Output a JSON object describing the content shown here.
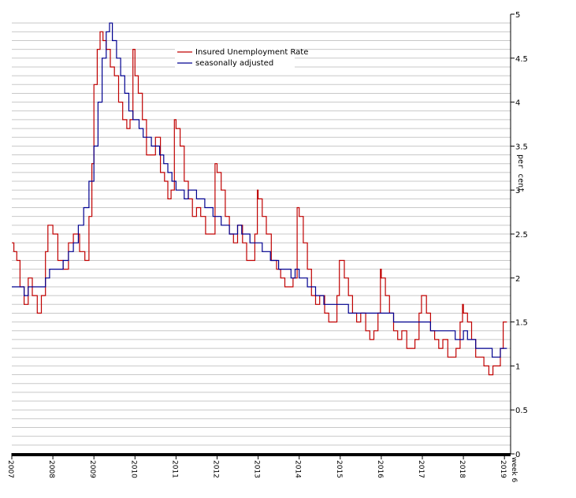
{
  "chart_data": {
    "type": "line",
    "xlabel": "",
    "ylabel": "per cent",
    "ylim": [
      0,
      5
    ],
    "y_ticks": [
      "0",
      "0.5",
      "1",
      "1.5",
      "2",
      "2.5",
      "3",
      "3.5",
      "4",
      "4.5",
      "5"
    ],
    "x_ticks": [
      "2007",
      "2008",
      "2009",
      "2010",
      "2011",
      "2012",
      "2013",
      "2014",
      "2015",
      "2016",
      "2017",
      "2018",
      "2019"
    ],
    "x_end_label": "week 6",
    "xlim": [
      2007.0,
      2019.15
    ],
    "grid": true,
    "legend_position": "top-center",
    "series": [
      {
        "name": "Insured Unemployment Rate",
        "color": "#c00000",
        "points": [
          [
            2007.0,
            2.4
          ],
          [
            2007.05,
            2.3
          ],
          [
            2007.12,
            2.2
          ],
          [
            2007.2,
            1.9
          ],
          [
            2007.3,
            1.7
          ],
          [
            2007.4,
            2.0
          ],
          [
            2007.5,
            1.8
          ],
          [
            2007.62,
            1.6
          ],
          [
            2007.72,
            1.8
          ],
          [
            2007.82,
            2.3
          ],
          [
            2007.88,
            2.6
          ],
          [
            2008.0,
            2.5
          ],
          [
            2008.12,
            2.2
          ],
          [
            2008.25,
            2.1
          ],
          [
            2008.38,
            2.4
          ],
          [
            2008.5,
            2.5
          ],
          [
            2008.65,
            2.3
          ],
          [
            2008.78,
            2.2
          ],
          [
            2008.88,
            2.7
          ],
          [
            2008.95,
            3.3
          ],
          [
            2009.0,
            4.2
          ],
          [
            2009.08,
            4.6
          ],
          [
            2009.15,
            4.8
          ],
          [
            2009.22,
            4.7
          ],
          [
            2009.3,
            4.6
          ],
          [
            2009.4,
            4.4
          ],
          [
            2009.5,
            4.3
          ],
          [
            2009.6,
            4.0
          ],
          [
            2009.7,
            3.8
          ],
          [
            2009.8,
            3.7
          ],
          [
            2009.88,
            3.8
          ],
          [
            2009.95,
            4.6
          ],
          [
            2010.0,
            4.3
          ],
          [
            2010.08,
            4.1
          ],
          [
            2010.18,
            3.8
          ],
          [
            2010.28,
            3.4
          ],
          [
            2010.4,
            3.4
          ],
          [
            2010.5,
            3.6
          ],
          [
            2010.62,
            3.2
          ],
          [
            2010.72,
            3.1
          ],
          [
            2010.8,
            2.9
          ],
          [
            2010.88,
            3.0
          ],
          [
            2010.96,
            3.8
          ],
          [
            2011.0,
            3.7
          ],
          [
            2011.1,
            3.5
          ],
          [
            2011.2,
            3.1
          ],
          [
            2011.3,
            2.9
          ],
          [
            2011.4,
            2.7
          ],
          [
            2011.5,
            2.8
          ],
          [
            2011.6,
            2.7
          ],
          [
            2011.72,
            2.5
          ],
          [
            2011.84,
            2.5
          ],
          [
            2011.95,
            3.3
          ],
          [
            2012.0,
            3.2
          ],
          [
            2012.1,
            3.0
          ],
          [
            2012.2,
            2.7
          ],
          [
            2012.3,
            2.5
          ],
          [
            2012.4,
            2.4
          ],
          [
            2012.5,
            2.6
          ],
          [
            2012.62,
            2.4
          ],
          [
            2012.72,
            2.2
          ],
          [
            2012.82,
            2.2
          ],
          [
            2012.92,
            2.5
          ],
          [
            2012.98,
            3.0
          ],
          [
            2013.0,
            2.9
          ],
          [
            2013.1,
            2.7
          ],
          [
            2013.2,
            2.5
          ],
          [
            2013.32,
            2.2
          ],
          [
            2013.45,
            2.1
          ],
          [
            2013.55,
            2.0
          ],
          [
            2013.65,
            1.9
          ],
          [
            2013.75,
            1.9
          ],
          [
            2013.85,
            2.0
          ],
          [
            2013.95,
            2.8
          ],
          [
            2014.0,
            2.7
          ],
          [
            2014.1,
            2.4
          ],
          [
            2014.2,
            2.1
          ],
          [
            2014.3,
            1.8
          ],
          [
            2014.4,
            1.7
          ],
          [
            2014.5,
            1.8
          ],
          [
            2014.62,
            1.6
          ],
          [
            2014.72,
            1.5
          ],
          [
            2014.82,
            1.5
          ],
          [
            2014.92,
            1.8
          ],
          [
            2014.98,
            2.2
          ],
          [
            2015.0,
            2.2
          ],
          [
            2015.1,
            2.0
          ],
          [
            2015.2,
            1.8
          ],
          [
            2015.3,
            1.6
          ],
          [
            2015.4,
            1.5
          ],
          [
            2015.5,
            1.6
          ],
          [
            2015.62,
            1.4
          ],
          [
            2015.72,
            1.3
          ],
          [
            2015.82,
            1.4
          ],
          [
            2015.92,
            1.6
          ],
          [
            2015.98,
            2.1
          ],
          [
            2016.0,
            2.0
          ],
          [
            2016.1,
            1.8
          ],
          [
            2016.2,
            1.6
          ],
          [
            2016.3,
            1.4
          ],
          [
            2016.4,
            1.3
          ],
          [
            2016.5,
            1.4
          ],
          [
            2016.62,
            1.2
          ],
          [
            2016.72,
            1.2
          ],
          [
            2016.82,
            1.3
          ],
          [
            2016.92,
            1.6
          ],
          [
            2016.98,
            1.8
          ],
          [
            2017.0,
            1.8
          ],
          [
            2017.1,
            1.6
          ],
          [
            2017.2,
            1.4
          ],
          [
            2017.3,
            1.3
          ],
          [
            2017.4,
            1.2
          ],
          [
            2017.5,
            1.3
          ],
          [
            2017.62,
            1.1
          ],
          [
            2017.72,
            1.1
          ],
          [
            2017.82,
            1.2
          ],
          [
            2017.92,
            1.5
          ],
          [
            2017.98,
            1.7
          ],
          [
            2018.0,
            1.6
          ],
          [
            2018.1,
            1.5
          ],
          [
            2018.2,
            1.3
          ],
          [
            2018.3,
            1.1
          ],
          [
            2018.4,
            1.1
          ],
          [
            2018.5,
            1.0
          ],
          [
            2018.62,
            0.9
          ],
          [
            2018.72,
            1.0
          ],
          [
            2018.82,
            1.0
          ],
          [
            2018.9,
            1.2
          ],
          [
            2018.97,
            1.5
          ],
          [
            2019.0,
            1.5
          ],
          [
            2019.06,
            1.5
          ]
        ]
      },
      {
        "name": "seasonally adjusted",
        "color": "#000090",
        "points": [
          [
            2007.0,
            1.9
          ],
          [
            2007.1,
            1.9
          ],
          [
            2007.2,
            1.9
          ],
          [
            2007.3,
            1.8
          ],
          [
            2007.4,
            1.9
          ],
          [
            2007.5,
            1.9
          ],
          [
            2007.62,
            1.9
          ],
          [
            2007.72,
            1.9
          ],
          [
            2007.82,
            2.0
          ],
          [
            2007.92,
            2.1
          ],
          [
            2008.0,
            2.1
          ],
          [
            2008.12,
            2.1
          ],
          [
            2008.25,
            2.2
          ],
          [
            2008.38,
            2.3
          ],
          [
            2008.5,
            2.4
          ],
          [
            2008.62,
            2.6
          ],
          [
            2008.75,
            2.8
          ],
          [
            2008.88,
            3.1
          ],
          [
            2009.0,
            3.5
          ],
          [
            2009.1,
            4.0
          ],
          [
            2009.2,
            4.5
          ],
          [
            2009.3,
            4.8
          ],
          [
            2009.38,
            4.9
          ],
          [
            2009.45,
            4.7
          ],
          [
            2009.55,
            4.5
          ],
          [
            2009.65,
            4.3
          ],
          [
            2009.75,
            4.1
          ],
          [
            2009.85,
            3.9
          ],
          [
            2009.95,
            3.8
          ],
          [
            2010.0,
            3.8
          ],
          [
            2010.1,
            3.7
          ],
          [
            2010.2,
            3.6
          ],
          [
            2010.3,
            3.6
          ],
          [
            2010.4,
            3.5
          ],
          [
            2010.5,
            3.5
          ],
          [
            2010.6,
            3.4
          ],
          [
            2010.7,
            3.3
          ],
          [
            2010.8,
            3.2
          ],
          [
            2010.9,
            3.1
          ],
          [
            2011.0,
            3.0
          ],
          [
            2011.1,
            3.0
          ],
          [
            2011.2,
            2.9
          ],
          [
            2011.3,
            3.0
          ],
          [
            2011.4,
            3.0
          ],
          [
            2011.5,
            2.9
          ],
          [
            2011.6,
            2.9
          ],
          [
            2011.7,
            2.8
          ],
          [
            2011.8,
            2.8
          ],
          [
            2011.9,
            2.7
          ],
          [
            2012.0,
            2.7
          ],
          [
            2012.1,
            2.6
          ],
          [
            2012.2,
            2.6
          ],
          [
            2012.3,
            2.5
          ],
          [
            2012.4,
            2.5
          ],
          [
            2012.5,
            2.6
          ],
          [
            2012.6,
            2.5
          ],
          [
            2012.7,
            2.5
          ],
          [
            2012.8,
            2.4
          ],
          [
            2012.9,
            2.4
          ],
          [
            2013.0,
            2.4
          ],
          [
            2013.1,
            2.3
          ],
          [
            2013.2,
            2.3
          ],
          [
            2013.3,
            2.2
          ],
          [
            2013.4,
            2.2
          ],
          [
            2013.5,
            2.1
          ],
          [
            2013.6,
            2.1
          ],
          [
            2013.7,
            2.1
          ],
          [
            2013.8,
            2.0
          ],
          [
            2013.9,
            2.1
          ],
          [
            2014.0,
            2.0
          ],
          [
            2014.1,
            2.0
          ],
          [
            2014.2,
            1.9
          ],
          [
            2014.3,
            1.9
          ],
          [
            2014.4,
            1.8
          ],
          [
            2014.5,
            1.8
          ],
          [
            2014.6,
            1.7
          ],
          [
            2014.7,
            1.7
          ],
          [
            2014.8,
            1.7
          ],
          [
            2014.9,
            1.7
          ],
          [
            2015.0,
            1.7
          ],
          [
            2015.1,
            1.7
          ],
          [
            2015.2,
            1.6
          ],
          [
            2015.3,
            1.6
          ],
          [
            2015.4,
            1.6
          ],
          [
            2015.5,
            1.6
          ],
          [
            2015.6,
            1.6
          ],
          [
            2015.7,
            1.6
          ],
          [
            2015.8,
            1.6
          ],
          [
            2015.9,
            1.6
          ],
          [
            2016.0,
            1.6
          ],
          [
            2016.1,
            1.6
          ],
          [
            2016.2,
            1.6
          ],
          [
            2016.3,
            1.5
          ],
          [
            2016.4,
            1.5
          ],
          [
            2016.5,
            1.5
          ],
          [
            2016.6,
            1.5
          ],
          [
            2016.7,
            1.5
          ],
          [
            2016.8,
            1.5
          ],
          [
            2016.9,
            1.5
          ],
          [
            2017.0,
            1.5
          ],
          [
            2017.1,
            1.5
          ],
          [
            2017.2,
            1.4
          ],
          [
            2017.3,
            1.4
          ],
          [
            2017.4,
            1.4
          ],
          [
            2017.5,
            1.4
          ],
          [
            2017.6,
            1.4
          ],
          [
            2017.7,
            1.4
          ],
          [
            2017.8,
            1.3
          ],
          [
            2017.9,
            1.3
          ],
          [
            2018.0,
            1.4
          ],
          [
            2018.1,
            1.3
          ],
          [
            2018.2,
            1.3
          ],
          [
            2018.3,
            1.2
          ],
          [
            2018.4,
            1.2
          ],
          [
            2018.5,
            1.2
          ],
          [
            2018.6,
            1.2
          ],
          [
            2018.7,
            1.1
          ],
          [
            2018.8,
            1.1
          ],
          [
            2018.9,
            1.2
          ],
          [
            2019.0,
            1.2
          ],
          [
            2019.06,
            1.2
          ]
        ]
      }
    ]
  }
}
